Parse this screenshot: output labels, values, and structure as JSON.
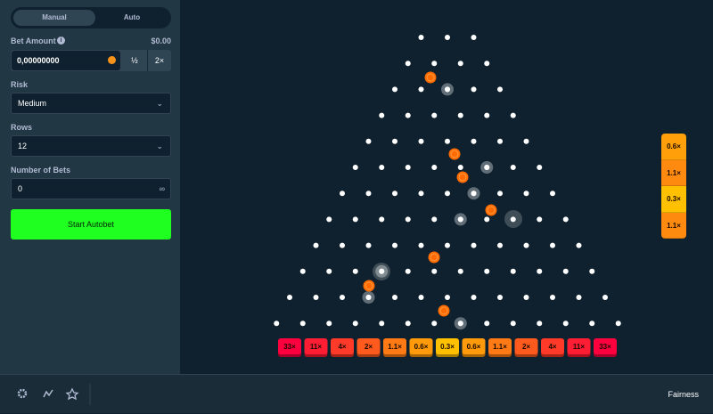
{
  "tabs": [
    "Manual",
    "Auto"
  ],
  "bet_amount": {
    "label": "Bet Amount",
    "usd": "$0.00",
    "value": "0,00000000",
    "half": "½",
    "double": "2×"
  },
  "risk": {
    "label": "Risk",
    "value": "Medium"
  },
  "rows": {
    "label": "Rows",
    "value": "12"
  },
  "number_of_bets": {
    "label": "Number of Bets",
    "value": "0"
  },
  "start_button": "Start Autobet",
  "multipliers": [
    "33×",
    "11×",
    "4×",
    "2×",
    "1.1×",
    "0.6×",
    "0.3×",
    "0.6×",
    "1.1×",
    "2×",
    "4×",
    "11×",
    "33×"
  ],
  "history": [
    "0.6×",
    "1.1×",
    "0.3×",
    "1.1×"
  ],
  "footer": {
    "fairness": "Fairness"
  }
}
